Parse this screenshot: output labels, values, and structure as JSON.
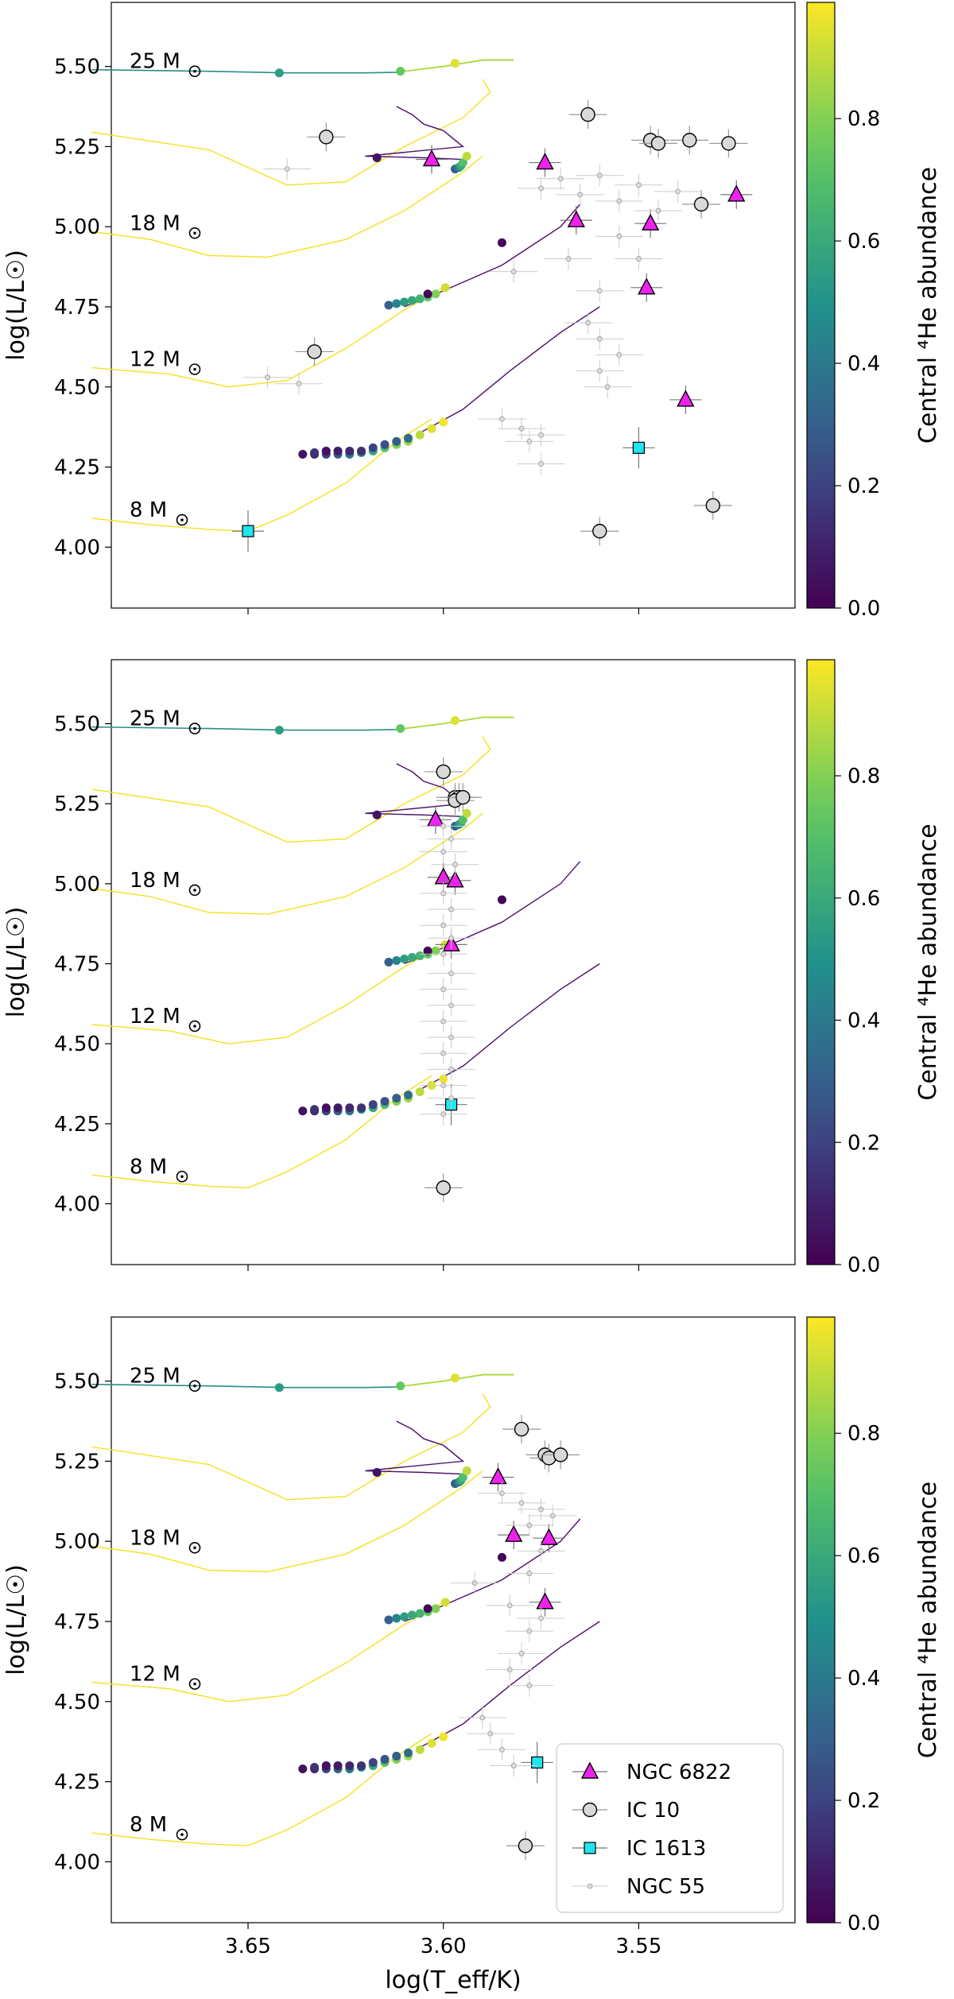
{
  "figure": {
    "colorbar_label": "Central ⁴He abundance",
    "colorbar_ticks": [
      "0.0",
      "0.2",
      "0.4",
      "0.6",
      "0.8"
    ],
    "colorbar_range": [
      0,
      0.99
    ],
    "colors": {
      "ngc6822": "#ee22ee",
      "ic10": "#d9d9d9",
      "ic1613": "#22e5f0",
      "ngc55": "#bbbbbb"
    }
  },
  "chart_data": [
    {
      "type": "scatter",
      "panel": "top",
      "title": "",
      "xlabel": "",
      "ylabel": "log(L/L☉)",
      "xlim": [
        3.685,
        3.51
      ],
      "ylim": [
        3.81,
        5.7
      ],
      "xticks": [
        "3.65",
        "3.60",
        "3.55"
      ],
      "yticks": [
        "4.00",
        "4.25",
        "4.50",
        "4.75",
        "5.00",
        "5.25",
        "5.50"
      ],
      "track_labels": [
        "25 M☉",
        "18 M☉",
        "12 M☉",
        "8 M☉"
      ],
      "series": [
        {
          "name": "NGC 6822",
          "points": [
            [
              3.603,
              5.21
            ],
            [
              3.574,
              5.2
            ],
            [
              3.566,
              5.02
            ],
            [
              3.547,
              5.01
            ],
            [
              3.525,
              5.1
            ],
            [
              3.548,
              4.81
            ],
            [
              3.538,
              4.46
            ]
          ]
        },
        {
          "name": "IC 10",
          "points": [
            [
              3.63,
              5.28
            ],
            [
              3.563,
              5.35
            ],
            [
              3.547,
              5.27
            ],
            [
              3.545,
              5.26
            ],
            [
              3.537,
              5.27
            ],
            [
              3.527,
              5.26
            ],
            [
              3.534,
              5.07
            ],
            [
              3.633,
              4.61
            ],
            [
              3.56,
              4.05
            ],
            [
              3.531,
              4.13
            ]
          ]
        },
        {
          "name": "IC 1613",
          "points": [
            [
              3.65,
              4.05
            ],
            [
              3.55,
              4.31
            ]
          ]
        },
        {
          "name": "NGC 55",
          "points": [
            [
              3.64,
              5.18
            ],
            [
              3.575,
              5.12
            ],
            [
              3.57,
              5.15
            ],
            [
              3.565,
              5.1
            ],
            [
              3.56,
              5.16
            ],
            [
              3.555,
              5.08
            ],
            [
              3.55,
              5.13
            ],
            [
              3.545,
              5.05
            ],
            [
              3.54,
              5.11
            ],
            [
              3.555,
              4.97
            ],
            [
              3.55,
              4.9
            ],
            [
              3.582,
              4.86
            ],
            [
              3.568,
              4.9
            ],
            [
              3.56,
              4.8
            ],
            [
              3.563,
              4.7
            ],
            [
              3.56,
              4.65
            ],
            [
              3.555,
              4.6
            ],
            [
              3.56,
              4.55
            ],
            [
              3.558,
              4.5
            ],
            [
              3.645,
              4.53
            ],
            [
              3.637,
              4.51
            ],
            [
              3.585,
              4.4
            ],
            [
              3.58,
              4.37
            ],
            [
              3.575,
              4.35
            ],
            [
              3.578,
              4.33
            ],
            [
              3.575,
              4.26
            ]
          ]
        }
      ]
    },
    {
      "type": "scatter",
      "panel": "middle",
      "title": "",
      "xlabel": "",
      "ylabel": "log(L/L☉)",
      "xlim": [
        3.685,
        3.51
      ],
      "ylim": [
        3.81,
        5.7
      ],
      "xticks": [
        "3.65",
        "3.60",
        "3.55"
      ],
      "yticks": [
        "4.00",
        "4.25",
        "4.50",
        "4.75",
        "5.00",
        "5.25",
        "5.50"
      ],
      "track_labels": [
        "25 M☉",
        "18 M☉",
        "12 M☉",
        "8 M☉"
      ],
      "series": [
        {
          "name": "NGC 6822",
          "points": [
            [
              3.602,
              5.2
            ],
            [
              3.6,
              5.02
            ],
            [
              3.597,
              5.01
            ],
            [
              3.598,
              4.81
            ]
          ]
        },
        {
          "name": "IC 10",
          "points": [
            [
              3.6,
              5.35
            ],
            [
              3.597,
              5.27
            ],
            [
              3.596,
              5.27
            ],
            [
              3.597,
              5.26
            ],
            [
              3.595,
              5.27
            ],
            [
              3.6,
              4.05
            ]
          ]
        },
        {
          "name": "IC 1613",
          "points": [
            [
              3.598,
              4.31
            ]
          ]
        },
        {
          "name": "NGC 55",
          "points": [
            [
              3.6,
              5.18
            ],
            [
              3.598,
              5.14
            ],
            [
              3.6,
              5.1
            ],
            [
              3.597,
              5.06
            ],
            [
              3.6,
              4.97
            ],
            [
              3.598,
              4.92
            ],
            [
              3.6,
              4.87
            ],
            [
              3.598,
              4.83
            ],
            [
              3.6,
              4.78
            ],
            [
              3.598,
              4.72
            ],
            [
              3.6,
              4.67
            ],
            [
              3.598,
              4.62
            ],
            [
              3.6,
              4.57
            ],
            [
              3.598,
              4.52
            ],
            [
              3.6,
              4.47
            ],
            [
              3.598,
              4.42
            ],
            [
              3.6,
              4.37
            ],
            [
              3.598,
              4.33
            ],
            [
              3.6,
              4.28
            ]
          ]
        }
      ]
    },
    {
      "type": "scatter",
      "panel": "bottom",
      "title": "",
      "xlabel": "log(T_eff/K)",
      "ylabel": "log(L/L☉)",
      "xlim": [
        3.685,
        3.51
      ],
      "ylim": [
        3.81,
        5.7
      ],
      "xticks": [
        "3.65",
        "3.60",
        "3.55"
      ],
      "yticks": [
        "4.00",
        "4.25",
        "4.50",
        "4.75",
        "5.00",
        "5.25",
        "5.50"
      ],
      "track_labels": [
        "25 M☉",
        "18 M☉",
        "12 M☉",
        "8 M☉"
      ],
      "legend": {
        "placement": "lower-right",
        "entries": [
          "NGC 6822",
          "IC 10",
          "IC 1613",
          "NGC 55"
        ]
      },
      "series": [
        {
          "name": "NGC 6822",
          "points": [
            [
              3.586,
              5.2
            ],
            [
              3.582,
              5.02
            ],
            [
              3.573,
              5.01
            ],
            [
              3.574,
              4.81
            ]
          ]
        },
        {
          "name": "IC 10",
          "points": [
            [
              3.58,
              5.35
            ],
            [
              3.574,
              5.27
            ],
            [
              3.573,
              5.26
            ],
            [
              3.57,
              5.27
            ],
            [
              3.579,
              4.05
            ]
          ]
        },
        {
          "name": "IC 1613",
          "points": [
            [
              3.576,
              4.31
            ]
          ]
        },
        {
          "name": "NGC 55",
          "points": [
            [
              3.585,
              5.15
            ],
            [
              3.58,
              5.12
            ],
            [
              3.575,
              5.1
            ],
            [
              3.578,
              5.05
            ],
            [
              3.572,
              5.08
            ],
            [
              3.575,
              4.97
            ],
            [
              3.592,
              4.87
            ],
            [
              3.578,
              4.9
            ],
            [
              3.583,
              4.8
            ],
            [
              3.575,
              4.76
            ],
            [
              3.578,
              4.72
            ],
            [
              3.58,
              4.65
            ],
            [
              3.583,
              4.6
            ],
            [
              3.578,
              4.55
            ],
            [
              3.588,
              4.4
            ],
            [
              3.585,
              4.35
            ],
            [
              3.582,
              4.3
            ],
            [
              3.59,
              4.45
            ]
          ]
        }
      ]
    }
  ],
  "tracks": {
    "t25": [
      [
        3.69,
        5.49
      ],
      [
        3.66,
        5.485
      ],
      [
        3.64,
        5.48
      ],
      [
        3.62,
        5.48
      ],
      [
        3.612,
        5.482
      ],
      [
        3.6,
        5.5
      ],
      [
        3.59,
        5.52
      ],
      [
        3.582,
        5.52
      ]
    ],
    "t25b": [
      [
        3.69,
        5.295
      ],
      [
        3.66,
        5.24
      ],
      [
        3.64,
        5.13
      ],
      [
        3.625,
        5.14
      ],
      [
        3.61,
        5.25
      ],
      [
        3.595,
        5.34
      ],
      [
        3.588,
        5.42
      ],
      [
        3.59,
        5.46
      ]
    ],
    "t18purple": [
      [
        3.612,
        5.375
      ],
      [
        3.608,
        5.35
      ],
      [
        3.605,
        5.32
      ],
      [
        3.6,
        5.3
      ],
      [
        3.595,
        5.25
      ],
      [
        3.62,
        5.22
      ],
      [
        3.605,
        5.215
      ],
      [
        3.595,
        5.21
      ]
    ],
    "t18": [
      [
        3.69,
        4.985
      ],
      [
        3.675,
        4.96
      ],
      [
        3.66,
        4.91
      ],
      [
        3.645,
        4.905
      ],
      [
        3.625,
        4.96
      ],
      [
        3.61,
        5.05
      ],
      [
        3.595,
        5.17
      ],
      [
        3.59,
        5.22
      ]
    ],
    "t12purple": [
      [
        3.61,
        4.75
      ],
      [
        3.6,
        4.8
      ],
      [
        3.585,
        4.88
      ],
      [
        3.57,
        5.0
      ],
      [
        3.565,
        5.07
      ]
    ],
    "t12": [
      [
        3.69,
        4.56
      ],
      [
        3.67,
        4.54
      ],
      [
        3.655,
        4.5
      ],
      [
        3.64,
        4.52
      ],
      [
        3.625,
        4.62
      ],
      [
        3.61,
        4.74
      ],
      [
        3.6,
        4.81
      ]
    ],
    "t8purple": [
      [
        3.607,
        4.35
      ],
      [
        3.595,
        4.43
      ],
      [
        3.583,
        4.55
      ],
      [
        3.57,
        4.67
      ],
      [
        3.56,
        4.75
      ]
    ],
    "t8": [
      [
        3.69,
        4.09
      ],
      [
        3.675,
        4.07
      ],
      [
        3.66,
        4.055
      ],
      [
        3.65,
        4.05
      ],
      [
        3.64,
        4.1
      ],
      [
        3.625,
        4.2
      ],
      [
        3.612,
        4.33
      ],
      [
        3.603,
        4.4
      ]
    ]
  },
  "model_dots": {
    "d25": [
      [
        3.642,
        5.48,
        0.55
      ],
      [
        3.611,
        5.485,
        0.75
      ],
      [
        3.597,
        5.51,
        0.95
      ]
    ],
    "d18": [
      [
        3.617,
        5.215,
        0.06
      ],
      [
        3.597,
        5.18,
        0.3
      ],
      [
        3.596,
        5.185,
        0.45
      ],
      [
        3.5955,
        5.19,
        0.6
      ],
      [
        3.595,
        5.2,
        0.7
      ],
      [
        3.594,
        5.22,
        0.9
      ]
    ],
    "d12": [
      [
        3.614,
        4.755,
        0.3
      ],
      [
        3.612,
        4.76,
        0.45
      ],
      [
        3.61,
        4.765,
        0.55
      ],
      [
        3.608,
        4.77,
        0.6
      ],
      [
        3.606,
        4.775,
        0.65
      ],
      [
        3.604,
        4.78,
        0.75
      ],
      [
        3.602,
        4.79,
        0.8
      ],
      [
        3.5995,
        4.81,
        0.93
      ],
      [
        3.585,
        4.95,
        0.02
      ],
      [
        3.604,
        4.79,
        0.02
      ]
    ],
    "d8": [
      [
        3.636,
        4.29,
        0.05
      ],
      [
        3.633,
        4.29,
        0.1
      ],
      [
        3.63,
        4.29,
        0.2
      ],
      [
        3.627,
        4.29,
        0.3
      ],
      [
        3.624,
        4.29,
        0.4
      ],
      [
        3.621,
        4.295,
        0.5
      ],
      [
        3.618,
        4.3,
        0.6
      ],
      [
        3.615,
        4.31,
        0.7
      ],
      [
        3.612,
        4.32,
        0.8
      ],
      [
        3.609,
        4.33,
        0.85
      ],
      [
        3.606,
        4.35,
        0.9
      ],
      [
        3.603,
        4.37,
        0.95
      ],
      [
        3.6,
        4.39,
        0.98
      ],
      [
        3.633,
        4.295,
        0.15
      ],
      [
        3.63,
        4.3,
        0.05
      ],
      [
        3.627,
        4.3,
        0.08
      ],
      [
        3.624,
        4.3,
        0.12
      ],
      [
        3.621,
        4.3,
        0.15
      ],
      [
        3.618,
        4.31,
        0.2
      ],
      [
        3.615,
        4.32,
        0.25
      ],
      [
        3.612,
        4.33,
        0.3
      ],
      [
        3.609,
        4.34,
        0.35
      ]
    ]
  }
}
